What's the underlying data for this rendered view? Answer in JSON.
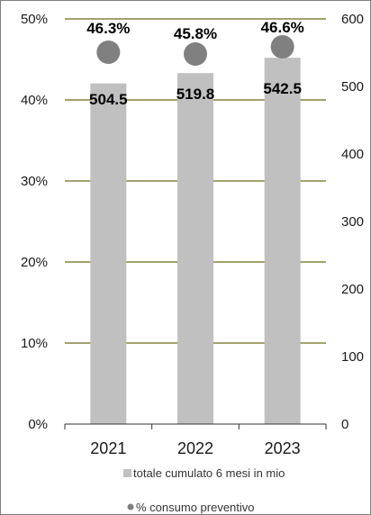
{
  "chart_data": {
    "type": "bar",
    "categories": [
      "2021",
      "2022",
      "2023"
    ],
    "series": [
      {
        "name": "totale cumulato 6 mesi in mio",
        "kind": "bar",
        "axis": "right",
        "values": [
          504.5,
          519.8,
          542.5
        ],
        "labels": [
          "504.5",
          "519.8",
          "542.5"
        ],
        "color": "#c0c0c0"
      },
      {
        "name": "% consumo preventivo",
        "kind": "scatter",
        "axis": "left",
        "values": [
          46.3,
          45.8,
          46.6
        ],
        "labels": [
          "46.3%",
          "45.8%",
          "46.6%"
        ],
        "color": "#808080"
      }
    ],
    "y_left": {
      "min": 0,
      "max": 50,
      "ticks": [
        "0%",
        "10%",
        "20%",
        "30%",
        "40%",
        "50%"
      ]
    },
    "y_right": {
      "min": 0,
      "max": 600,
      "ticks": [
        "0",
        "100",
        "200",
        "300",
        "400",
        "500",
        "600"
      ]
    },
    "gridlines": true,
    "grid_color": "#6b6b1a",
    "legend_position": "bottom"
  }
}
